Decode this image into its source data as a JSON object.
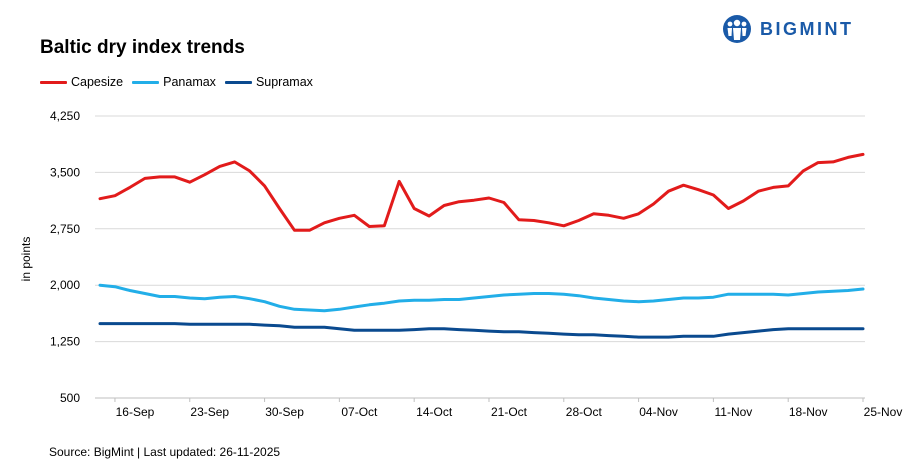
{
  "header": {
    "title": "Baltic dry index trends",
    "brand": "BIGMINT"
  },
  "footer": {
    "source": "Source: BigMint | Last updated: 26-11-2025"
  },
  "colors": {
    "capesize": "#e21b1b",
    "panamax": "#22aee8",
    "supramax": "#0a4a8f",
    "brand": "#1a5aa8",
    "grid": "#d9d9d9"
  },
  "chart_data": {
    "type": "line",
    "title": "Baltic dry index trends",
    "ylabel": "in points",
    "xlabel": "",
    "ylim": [
      500,
      4250
    ],
    "yticks": [
      500,
      1250,
      2000,
      2750,
      3500,
      4250
    ],
    "ytick_labels": [
      "500",
      "1,250",
      "2,000",
      "2,750",
      "3,500",
      "4,250"
    ],
    "x_tick_labels": [
      "16-Sep",
      "23-Sep",
      "30-Sep",
      "07-Oct",
      "14-Oct",
      "21-Oct",
      "28-Oct",
      "04-Nov",
      "11-Nov",
      "18-Nov",
      "25-Nov"
    ],
    "x": [
      "15-Sep",
      "16-Sep",
      "17-Sep",
      "18-Sep",
      "19-Sep",
      "22-Sep",
      "23-Sep",
      "24-Sep",
      "25-Sep",
      "26-Sep",
      "29-Sep",
      "30-Sep",
      "01-Oct",
      "02-Oct",
      "03-Oct",
      "06-Oct",
      "07-Oct",
      "08-Oct",
      "09-Oct",
      "10-Oct",
      "13-Oct",
      "14-Oct",
      "15-Oct",
      "16-Oct",
      "17-Oct",
      "20-Oct",
      "21-Oct",
      "22-Oct",
      "23-Oct",
      "24-Oct",
      "27-Oct",
      "28-Oct",
      "29-Oct",
      "30-Oct",
      "31-Oct",
      "03-Nov",
      "04-Nov",
      "05-Nov",
      "06-Nov",
      "07-Nov",
      "10-Nov",
      "11-Nov",
      "12-Nov",
      "13-Nov",
      "14-Nov",
      "17-Nov",
      "18-Nov",
      "19-Nov",
      "20-Nov",
      "21-Nov",
      "24-Nov",
      "25-Nov"
    ],
    "legend_position": "top-left",
    "grid": true,
    "series": [
      {
        "name": "Capesize",
        "color": "#e21b1b",
        "values": [
          3150,
          3190,
          3300,
          3420,
          3440,
          3440,
          3370,
          3470,
          3580,
          3640,
          3520,
          3320,
          3020,
          2730,
          2730,
          2830,
          2890,
          2930,
          2780,
          2790,
          3380,
          3020,
          2920,
          3060,
          3110,
          3130,
          3160,
          3100,
          2870,
          2860,
          2830,
          2790,
          2860,
          2950,
          2930,
          2890,
          2950,
          3080,
          3250,
          3330,
          3270,
          3200,
          3020,
          3120,
          3250,
          3300,
          3320,
          3520,
          3630,
          3640,
          3700,
          3740
        ]
      },
      {
        "name": "Panamax",
        "color": "#22aee8",
        "values": [
          2000,
          1980,
          1930,
          1890,
          1850,
          1850,
          1830,
          1820,
          1840,
          1850,
          1820,
          1780,
          1720,
          1680,
          1670,
          1660,
          1680,
          1710,
          1740,
          1760,
          1790,
          1800,
          1800,
          1810,
          1810,
          1830,
          1850,
          1870,
          1880,
          1890,
          1890,
          1880,
          1860,
          1830,
          1810,
          1790,
          1780,
          1790,
          1810,
          1830,
          1830,
          1840,
          1880,
          1880,
          1880,
          1880,
          1870,
          1890,
          1910,
          1920,
          1930,
          1950
        ]
      },
      {
        "name": "Supramax",
        "color": "#0a4a8f",
        "values": [
          1490,
          1490,
          1490,
          1490,
          1490,
          1490,
          1480,
          1480,
          1480,
          1480,
          1480,
          1470,
          1460,
          1440,
          1440,
          1440,
          1420,
          1400,
          1400,
          1400,
          1400,
          1410,
          1420,
          1420,
          1410,
          1400,
          1390,
          1380,
          1380,
          1370,
          1360,
          1350,
          1340,
          1340,
          1330,
          1320,
          1310,
          1310,
          1310,
          1320,
          1320,
          1320,
          1350,
          1370,
          1390,
          1410,
          1420,
          1420,
          1420,
          1420,
          1420,
          1420
        ]
      }
    ]
  }
}
